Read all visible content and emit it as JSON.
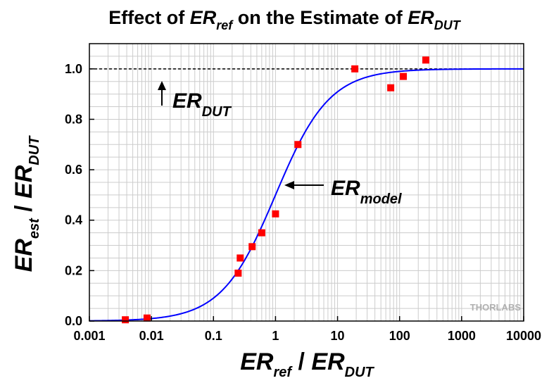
{
  "chart_data": {
    "type": "scatter",
    "title": {
      "main": "ER",
      "main_sub": "ref",
      "rest": " on the Estimate of ",
      "rest_main": "ER",
      "rest_sub": "DUT",
      "prefix": "Effect of "
    },
    "xlabel": {
      "a": "ER",
      "a_sub": "ref",
      "sep": " / ",
      "b": "ER",
      "b_sub": "DUT"
    },
    "ylabel": {
      "a": "ER",
      "a_sub": "est",
      "sep": " / ",
      "b": "ER",
      "b_sub": "DUT"
    },
    "xscale": "log",
    "xlim": [
      0.001,
      10000
    ],
    "ylim": [
      0.0,
      1.1
    ],
    "x_ticks": [
      "0.001",
      "0.01",
      "0.1",
      "1",
      "10",
      "100",
      "1000",
      "10000"
    ],
    "y_ticks": [
      "0.0",
      "0.2",
      "0.4",
      "0.6",
      "0.8",
      "1.0"
    ],
    "grid": true,
    "series": [
      {
        "kind": "points",
        "color": "#ff0000",
        "x": [
          0.0038,
          0.0085,
          0.25,
          0.27,
          0.42,
          0.6,
          1.0,
          2.3,
          19,
          72,
          115,
          265
        ],
        "y": [
          0.005,
          0.012,
          0.19,
          0.25,
          0.295,
          0.35,
          0.425,
          0.7,
          1.0,
          0.925,
          0.97,
          1.035
        ]
      },
      {
        "kind": "model-curve",
        "color": "#0000ff",
        "model": "x/(1+x)"
      },
      {
        "kind": "reference-line",
        "y": 1.0,
        "color": "#000000",
        "style": "dashed"
      }
    ],
    "annotations": [
      {
        "id": "dut",
        "main": "ER",
        "sub": "DUT",
        "arrow": "up"
      },
      {
        "id": "model",
        "main": "ER",
        "sub": "model",
        "arrow": "left"
      }
    ],
    "watermark": "THORLABS"
  }
}
